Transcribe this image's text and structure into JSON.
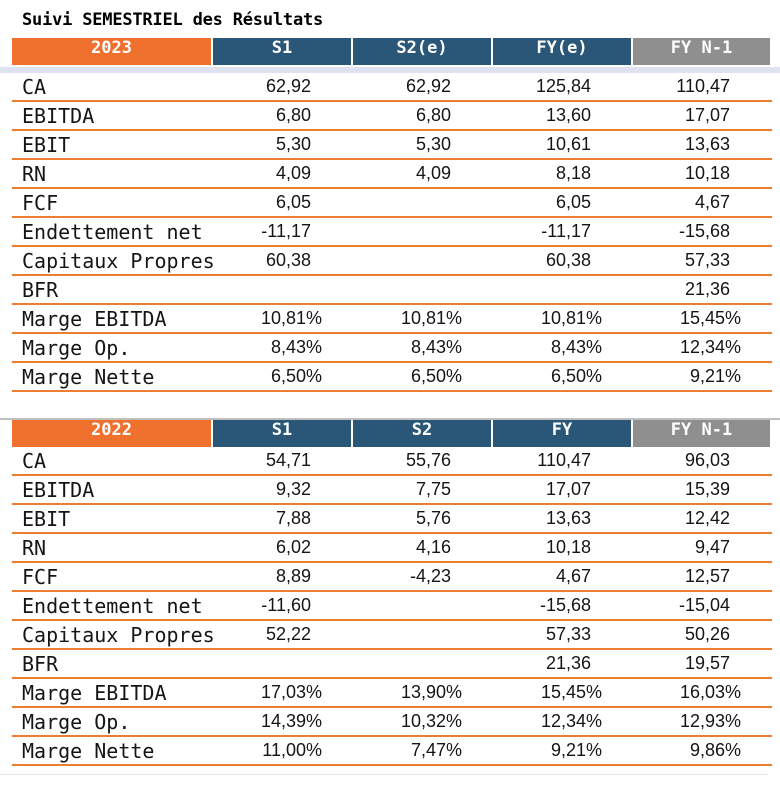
{
  "title": "Suivi SEMESTRIEL des Résultats",
  "colors": {
    "header_year_orange": "#F0712D",
    "header_blue": "#2A5778",
    "header_gray": "#8F8F8F",
    "row_separator_orange": "#ED7D31",
    "band_under_header": "#DEE3EF",
    "line_above_table2": "#BFBFBF",
    "text": "#151515"
  },
  "tables": [
    {
      "year": "2023",
      "columns": [
        "S1",
        "S2(e)",
        "FY(e)",
        "FY N-1"
      ],
      "band_below_header": true,
      "line_above_header": false,
      "rows": [
        {
          "label": "CA",
          "values": [
            "62,92",
            "62,92",
            "125,84",
            "110,47"
          ]
        },
        {
          "label": "EBITDA",
          "values": [
            "6,80",
            "6,80",
            "13,60",
            "17,07"
          ]
        },
        {
          "label": "EBIT",
          "values": [
            "5,30",
            "5,30",
            "10,61",
            "13,63"
          ]
        },
        {
          "label": "RN",
          "values": [
            "4,09",
            "4,09",
            "8,18",
            "10,18"
          ]
        },
        {
          "label": "FCF",
          "values": [
            "6,05",
            "",
            "6,05",
            "4,67"
          ]
        },
        {
          "label": "Endettement net",
          "values": [
            "-11,17",
            "",
            "-11,17",
            "-15,68"
          ]
        },
        {
          "label": "Capitaux Propres",
          "values": [
            "60,38",
            "",
            "60,38",
            "57,33"
          ]
        },
        {
          "label": "BFR",
          "values": [
            "",
            "",
            "",
            "21,36"
          ]
        },
        {
          "label": "Marge EBITDA",
          "values": [
            "10,81%",
            "10,81%",
            "10,81%",
            "15,45%"
          ]
        },
        {
          "label": "Marge Op.",
          "values": [
            "8,43%",
            "8,43%",
            "8,43%",
            "12,34%"
          ]
        },
        {
          "label": "Marge Nette",
          "values": [
            "6,50%",
            "6,50%",
            "6,50%",
            "9,21%"
          ]
        }
      ]
    },
    {
      "year": "2022",
      "columns": [
        "S1",
        "S2",
        "FY",
        "FY N-1"
      ],
      "band_below_header": false,
      "line_above_header": true,
      "rows": [
        {
          "label": "CA",
          "values": [
            "54,71",
            "55,76",
            "110,47",
            "96,03"
          ]
        },
        {
          "label": "EBITDA",
          "values": [
            "9,32",
            "7,75",
            "17,07",
            "15,39"
          ]
        },
        {
          "label": "EBIT",
          "values": [
            "7,88",
            "5,76",
            "13,63",
            "12,42"
          ]
        },
        {
          "label": "RN",
          "values": [
            "6,02",
            "4,16",
            "10,18",
            "9,47"
          ]
        },
        {
          "label": "FCF",
          "values": [
            "8,89",
            "-4,23",
            "4,67",
            "12,57"
          ]
        },
        {
          "label": "Endettement net",
          "values": [
            "-11,60",
            "",
            "-15,68",
            "-15,04"
          ]
        },
        {
          "label": "Capitaux Propres",
          "values": [
            "52,22",
            "",
            "57,33",
            "50,26"
          ]
        },
        {
          "label": "BFR",
          "values": [
            "",
            "",
            "21,36",
            "19,57"
          ]
        },
        {
          "label": "Marge EBITDA",
          "values": [
            "17,03%",
            "13,90%",
            "15,45%",
            "16,03%"
          ]
        },
        {
          "label": "Marge Op.",
          "values": [
            "14,39%",
            "10,32%",
            "12,34%",
            "12,93%"
          ]
        },
        {
          "label": "Marge Nette",
          "values": [
            "11,00%",
            "7,47%",
            "9,21%",
            "9,86%"
          ]
        }
      ]
    }
  ]
}
